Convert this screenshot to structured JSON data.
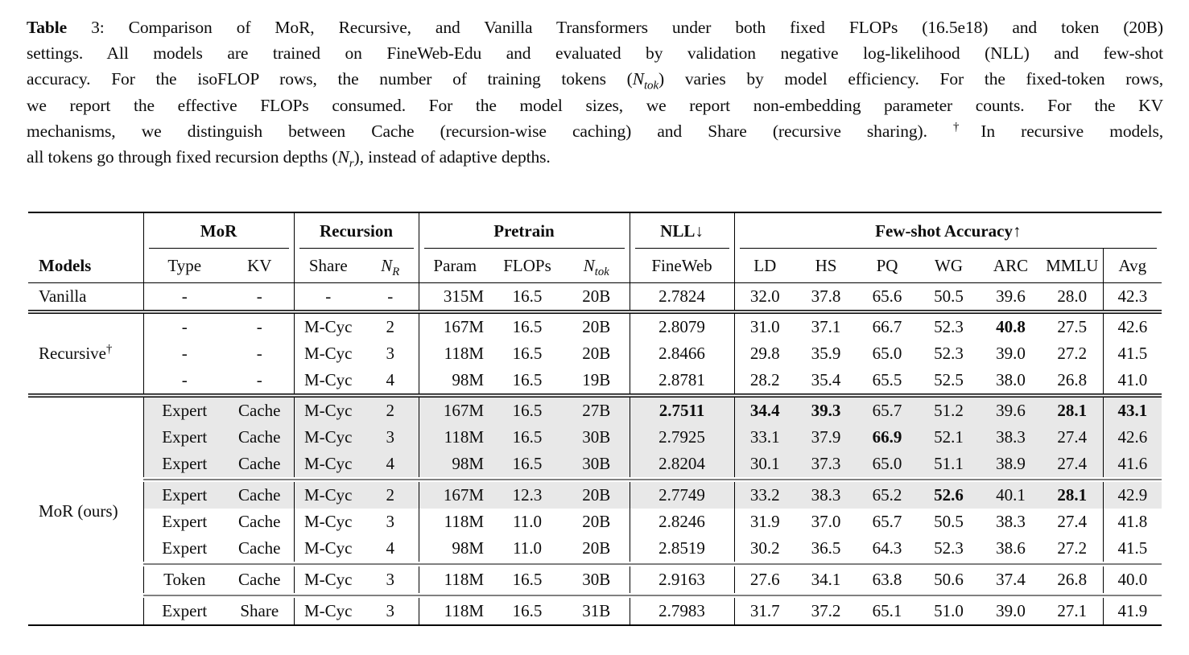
{
  "caption": {
    "lines": [
      "**Table** 3: Comparison of MoR, Recursive, and Vanilla Transformers under both fixed FLOPs (16.5e18) and token (20B)",
      "settings. All models are trained on FineWeb-Edu and evaluated by validation negative log-likelihood (NLL) and few-shot",
      "accuracy. For the isoFLOP rows, the number of training tokens (*N*_{tok}) varies by model efficiency. For the fixed-token rows,",
      "we report the effective FLOPs consumed. For the model sizes, we report non-embedding parameter counts. For the KV",
      "mechanisms, we distinguish between Cache (recursion-wise caching) and Share (recursive sharing). ^{†}In recursive models,",
      "all tokens go through fixed recursion depths (*N*_{r}), instead of adaptive depths."
    ]
  },
  "table": {
    "col_groups": [
      {
        "label": "",
        "span": 1,
        "rule": false
      },
      {
        "label": "MoR",
        "span": 2,
        "rule": true
      },
      {
        "label": "Recursion",
        "span": 2,
        "rule": true
      },
      {
        "label": "Pretrain",
        "span": 3,
        "rule": true
      },
      {
        "label": "NLL↓",
        "span": 1,
        "rule": true
      },
      {
        "label": "Few-shot Accuracy↑",
        "span": 7,
        "rule": true
      }
    ],
    "columns": [
      "Models",
      "Type",
      "KV",
      "Share",
      "*N*_{R}",
      "Param",
      "FLOPs",
      "*N*_{tok}",
      "FineWeb",
      "LD",
      "HS",
      "PQ",
      "WG",
      "ARC",
      "MMLU",
      "Avg"
    ],
    "sections": [
      {
        "label": "Vanilla",
        "separator": "none",
        "rows": [
          {
            "cells": [
              "-",
              "-",
              "-",
              "-",
              "315M",
              "16.5",
              "20B",
              "2.7824",
              "32.0",
              "37.8",
              "65.6",
              "50.5",
              "39.6",
              "28.0",
              "42.3"
            ]
          }
        ]
      },
      {
        "label": "Recursive^{†}",
        "separator": "double",
        "rows": [
          {
            "cells": [
              "-",
              "-",
              "M-Cyc",
              "2",
              "167M",
              "16.5",
              "20B",
              "2.8079",
              "31.0",
              "37.1",
              "66.7",
              "52.3",
              "**40.8**",
              "27.5",
              "42.6"
            ]
          },
          {
            "cells": [
              "-",
              "-",
              "M-Cyc",
              "3",
              "118M",
              "16.5",
              "20B",
              "2.8466",
              "29.8",
              "35.9",
              "65.0",
              "52.3",
              "39.0",
              "27.2",
              "41.5"
            ]
          },
          {
            "cells": [
              "-",
              "-",
              "M-Cyc",
              "4",
              "98M",
              "16.5",
              "19B",
              "2.8781",
              "28.2",
              "35.4",
              "65.5",
              "52.5",
              "38.0",
              "26.8",
              "41.0"
            ]
          }
        ]
      },
      {
        "label": "MoR (ours)",
        "separator": "double",
        "rows": [
          {
            "shaded": true,
            "cells": [
              "Expert",
              "Cache",
              "M-Cyc",
              "2",
              "167M",
              "16.5",
              "27B",
              "**2.7511**",
              "**34.4**",
              "**39.3**",
              "65.7",
              "51.2",
              "39.6",
              "**28.1**",
              "**43.1**"
            ]
          },
          {
            "shaded": true,
            "cells": [
              "Expert",
              "Cache",
              "M-Cyc",
              "3",
              "118M",
              "16.5",
              "30B",
              "2.7925",
              "33.1",
              "37.9",
              "**66.9**",
              "52.1",
              "38.3",
              "27.4",
              "42.6"
            ]
          },
          {
            "shaded": true,
            "cells": [
              "Expert",
              "Cache",
              "M-Cyc",
              "4",
              "98M",
              "16.5",
              "30B",
              "2.8204",
              "30.1",
              "37.3",
              "65.0",
              "51.1",
              "38.9",
              "27.4",
              "41.6"
            ]
          },
          {
            "shaded": true,
            "rule_above": true,
            "cells": [
              "Expert",
              "Cache",
              "M-Cyc",
              "2",
              "167M",
              "12.3",
              "20B",
              "2.7749",
              "33.2",
              "38.3",
              "65.2",
              "**52.6**",
              "40.1",
              "**28.1**",
              "42.9"
            ]
          },
          {
            "cells": [
              "Expert",
              "Cache",
              "M-Cyc",
              "3",
              "118M",
              "11.0",
              "20B",
              "2.8246",
              "31.9",
              "37.0",
              "65.7",
              "50.5",
              "38.3",
              "27.4",
              "41.8"
            ]
          },
          {
            "cells": [
              "Expert",
              "Cache",
              "M-Cyc",
              "4",
              "98M",
              "11.0",
              "20B",
              "2.8519",
              "30.2",
              "36.5",
              "64.3",
              "52.3",
              "38.6",
              "27.2",
              "41.5"
            ]
          },
          {
            "rule_above": true,
            "cells": [
              "Token",
              "Cache",
              "M-Cyc",
              "3",
              "118M",
              "16.5",
              "30B",
              "2.9163",
              "27.6",
              "34.1",
              "63.8",
              "50.6",
              "37.4",
              "26.8",
              "40.0"
            ]
          },
          {
            "rule_above": true,
            "cells": [
              "Expert",
              "Share",
              "M-Cyc",
              "3",
              "118M",
              "16.5",
              "31B",
              "2.7983",
              "31.7",
              "37.2",
              "65.1",
              "51.0",
              "39.0",
              "27.1",
              "41.9"
            ]
          }
        ]
      }
    ]
  },
  "colors": {
    "row_shade": "#e8e8e8",
    "rule": "#000000",
    "text": "#0d0d0d",
    "background": "#ffffff"
  }
}
